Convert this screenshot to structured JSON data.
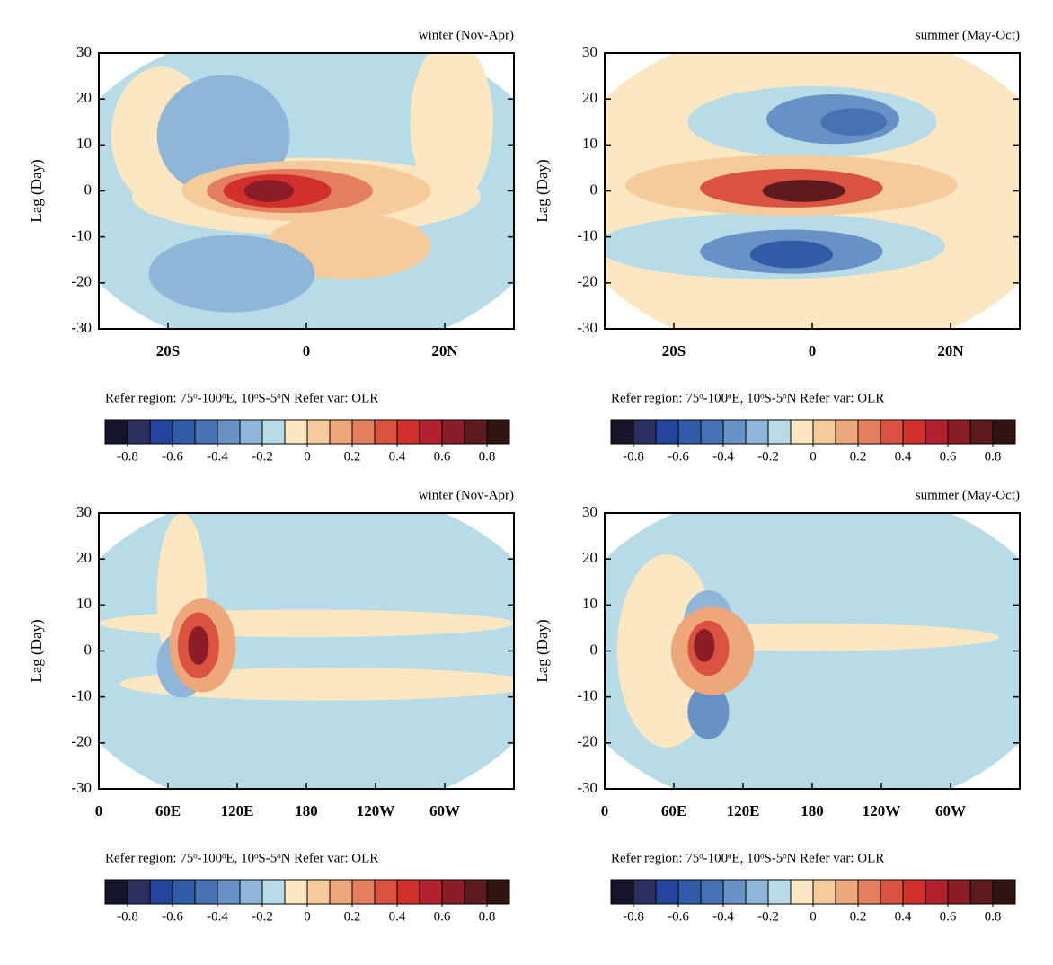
{
  "chart_data": [
    {
      "type": "contour",
      "title": "winter (Nov-Apr)",
      "ylabel": "Lag (Day)",
      "xlim": [
        -30,
        30
      ],
      "xticks": [
        {
          "value": -20,
          "label": "20S"
        },
        0,
        {
          "value": 20,
          "label": "20N"
        }
      ],
      "ylim": [
        -30,
        30
      ],
      "yticks": [
        30,
        20,
        10,
        0,
        -10,
        -20,
        -30
      ],
      "note": "Refer region: 75ᵒ-100ᵒE, 10ᵒS-5ᵒN  Refer var: OLR",
      "colorbar": {
        "lim": [
          -0.9,
          0.9
        ],
        "ticks": [
          -0.8,
          -0.6,
          -0.4,
          -0.2,
          0,
          0.2,
          0.4,
          0.6,
          0.8
        ],
        "colors": [
          "#15142a",
          "#2b2f5f",
          "#24449b",
          "#2f5ba7",
          "#4771b2",
          "#6891c5",
          "#8fb5d9",
          "#b7dce7",
          "#fbe7c1",
          "#f6cb9c",
          "#eea77b",
          "#e47e5f",
          "#da5340",
          "#d1302d",
          "#b3212e",
          "#8c1d28",
          "#5d1b1f",
          "#2f1411"
        ]
      }
    },
    {
      "type": "contour",
      "title": "summer (May-Oct)",
      "ylabel": "Lag (Day)",
      "xlim": [
        -30,
        30
      ],
      "xticks": [
        {
          "value": -20,
          "label": "20S"
        },
        0,
        {
          "value": 20,
          "label": "20N"
        }
      ],
      "ylim": [
        -30,
        30
      ],
      "yticks": [
        30,
        20,
        10,
        0,
        -10,
        -20,
        -30
      ],
      "note": "Refer region: 75ᵒ-100ᵒE, 10ᵒS-5ᵒN  Refer var: OLR",
      "colorbar": {
        "lim": [
          -0.9,
          0.9
        ],
        "ticks": [
          -0.8,
          -0.6,
          -0.4,
          -0.2,
          0,
          0.2,
          0.4,
          0.6,
          0.8
        ],
        "colors": [
          "#15142a",
          "#2b2f5f",
          "#24449b",
          "#2f5ba7",
          "#4771b2",
          "#6891c5",
          "#8fb5d9",
          "#b7dce7",
          "#fbe7c1",
          "#f6cb9c",
          "#eea77b",
          "#e47e5f",
          "#da5340",
          "#d1302d",
          "#b3212e",
          "#8c1d28",
          "#5d1b1f",
          "#2f1411"
        ]
      }
    },
    {
      "type": "contour",
      "title": "winter (Nov-Apr)",
      "ylabel": "Lag (Day)",
      "xlim": [
        0,
        360
      ],
      "xticks": [
        0,
        {
          "value": 60,
          "label": "60E"
        },
        {
          "value": 120,
          "label": "120E"
        },
        180,
        {
          "value": 240,
          "label": "120W"
        },
        {
          "value": 300,
          "label": "60W"
        }
      ],
      "ylim": [
        -30,
        30
      ],
      "yticks": [
        30,
        20,
        10,
        0,
        -10,
        -20,
        -30
      ],
      "note": "Refer region: 75ᵒ-100ᵒE, 10ᵒS-5ᵒN  Refer var: OLR",
      "colorbar": {
        "lim": [
          -0.9,
          0.9
        ],
        "ticks": [
          -0.8,
          -0.6,
          -0.4,
          -0.2,
          0,
          0.2,
          0.4,
          0.6,
          0.8
        ],
        "colors": [
          "#15142a",
          "#2b2f5f",
          "#24449b",
          "#2f5ba7",
          "#4771b2",
          "#6891c5",
          "#8fb5d9",
          "#b7dce7",
          "#fbe7c1",
          "#f6cb9c",
          "#eea77b",
          "#e47e5f",
          "#da5340",
          "#d1302d",
          "#b3212e",
          "#8c1d28",
          "#5d1b1f",
          "#2f1411"
        ]
      }
    },
    {
      "type": "contour",
      "title": "summer (May-Oct)",
      "ylabel": "Lag (Day)",
      "xlim": [
        0,
        360
      ],
      "xticks": [
        0,
        {
          "value": 60,
          "label": "60E"
        },
        {
          "value": 120,
          "label": "120E"
        },
        180,
        {
          "value": 240,
          "label": "120W"
        },
        {
          "value": 300,
          "label": "60W"
        }
      ],
      "ylim": [
        -30,
        30
      ],
      "yticks": [
        30,
        20,
        10,
        0,
        -10,
        -20,
        -30
      ],
      "note": "Refer region: 75ᵒ-100ᵒE, 10ᵒS-5ᵒN  Refer var: OLR",
      "colorbar": {
        "lim": [
          -0.9,
          0.9
        ],
        "ticks": [
          -0.8,
          -0.6,
          -0.4,
          -0.2,
          0,
          0.2,
          0.4,
          0.6,
          0.8
        ],
        "colors": [
          "#15142a",
          "#2b2f5f",
          "#24449b",
          "#2f5ba7",
          "#4771b2",
          "#6891c5",
          "#8fb5d9",
          "#b7dce7",
          "#fbe7c1",
          "#f6cb9c",
          "#eea77b",
          "#e47e5f",
          "#da5340",
          "#d1302d",
          "#b3212e",
          "#8c1d28",
          "#5d1b1f",
          "#2f1411"
        ]
      }
    }
  ]
}
